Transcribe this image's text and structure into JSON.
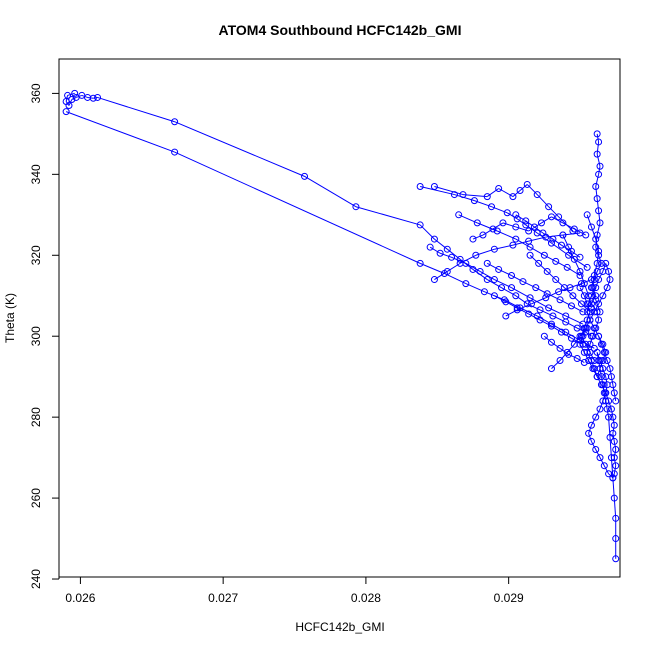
{
  "chart_data": {
    "type": "line",
    "title": "ATOM4 Southbound HCFC142b_GMI",
    "xlabel": "HCFC142b_GMI",
    "ylabel": "Theta (K)",
    "xlim": [
      0.02585,
      0.02978
    ],
    "ylim": [
      240.5,
      368.5
    ],
    "x_ticks": [
      0.026,
      0.027,
      0.028,
      0.029
    ],
    "x_tick_labels": [
      "0.026",
      "0.027",
      "0.028",
      "0.029"
    ],
    "y_ticks": [
      240,
      260,
      280,
      300,
      320,
      340,
      360
    ],
    "y_tick_labels": [
      "240",
      "260",
      "280",
      "300",
      "320",
      "340",
      "360"
    ],
    "grid": false,
    "legend": "none",
    "series_color": "#0000ff",
    "marker": "open-circle",
    "series": [
      {
        "x": [
          0.02962,
          0.02963,
          0.02962,
          0.02964,
          0.02963,
          0.02961,
          0.02962,
          0.02963,
          0.02964,
          0.02962,
          0.02961,
          0.02963,
          0.02965,
          0.02962,
          0.0296,
          0.02959,
          0.02961,
          0.02958,
          0.02962,
          0.02963,
          0.02961,
          0.02959,
          0.02957,
          0.02955,
          0.02958,
          0.0296,
          0.02962,
          0.02964,
          0.02966,
          0.02968,
          0.02966,
          0.02963,
          0.0296,
          0.02957,
          0.02955,
          0.02956,
          0.02958,
          0.02961,
          0.02963,
          0.02966,
          0.02968,
          0.0297,
          0.02971,
          0.02969,
          0.02966,
          0.02963,
          0.0296,
          0.02957,
          0.02954,
          0.02952,
          0.0295,
          0.02953,
          0.02956,
          0.02959,
          0.02962,
          0.02965,
          0.02968,
          0.0297,
          0.02972,
          0.02973,
          0.02974,
          0.02973,
          0.02974,
          0.02975,
          0.02974,
          0.02975,
          0.02974,
          0.02973,
          0.0297,
          0.02967,
          0.02964,
          0.02961,
          0.02958,
          0.02956,
          0.02958,
          0.02961,
          0.02964,
          0.02966,
          0.02968,
          0.02969,
          0.02968,
          0.02966,
          0.02964,
          0.02962,
          0.02963,
          0.02964,
          0.02965,
          0.02966,
          0.02967,
          0.02968,
          0.02969,
          0.0297,
          0.02971,
          0.02972,
          0.02973,
          0.02974,
          0.02975,
          0.02975,
          0.02975
        ],
        "y": [
          350.0,
          348.0,
          345.0,
          342.0,
          340.0,
          337.0,
          334.0,
          331.0,
          328.0,
          325.0,
          322.0,
          320.0,
          318.0,
          316.0,
          314.0,
          312.0,
          310.0,
          308.0,
          306.0,
          304.0,
          302.0,
          300.0,
          298.0,
          296.0,
          294.0,
          292.0,
          290.0,
          292.0,
          294.0,
          296.0,
          298.0,
          300.0,
          302.0,
          304.0,
          306.0,
          308.0,
          310.0,
          312.0,
          314.0,
          316.0,
          318.0,
          316.0,
          314.0,
          312.0,
          310.0,
          308.0,
          306.0,
          304.0,
          302.0,
          300.0,
          298.0,
          296.0,
          294.0,
          292.0,
          290.0,
          288.0,
          286.0,
          284.0,
          282.0,
          280.0,
          278.0,
          276.0,
          274.0,
          272.0,
          270.0,
          268.0,
          266.0,
          265.0,
          266.0,
          268.0,
          270.0,
          272.0,
          274.0,
          276.0,
          278.0,
          280.0,
          282.0,
          284.0,
          286.0,
          288.0,
          290.0,
          292.0,
          294.0,
          296.0,
          294.0,
          292.0,
          290.0,
          288.0,
          286.0,
          284.0,
          282.0,
          280.0,
          275.0,
          270.0,
          265.0,
          260.0,
          255.0,
          250.0,
          245.0
        ]
      },
      {
        "x": [
          0.02596,
          0.02591,
          0.0259,
          0.02592,
          0.02594,
          0.02597,
          0.02601,
          0.02605,
          0.02609,
          0.02612,
          0.02666,
          0.02757,
          0.02793,
          0.02838,
          0.02848,
          0.02857,
          0.02866,
          0.02875,
          0.02885,
          0.02895,
          0.02905,
          0.02913,
          0.02922,
          0.02931,
          0.0294,
          0.02948,
          0.02954,
          0.02958
        ],
        "y": [
          360.0,
          359.5,
          358.0,
          357.0,
          358.5,
          359.0,
          359.5,
          359.0,
          358.8,
          359.0,
          353.0,
          339.5,
          332.0,
          327.5,
          324.0,
          321.5,
          319.0,
          316.5,
          314.0,
          312.0,
          310.0,
          308.0,
          306.5,
          305.0,
          303.5,
          302.0,
          301.0,
          300.0
        ]
      },
      {
        "x": [
          0.0259,
          0.02666,
          0.02838,
          0.02855,
          0.0287,
          0.02883,
          0.02897,
          0.02908,
          0.0292,
          0.0293,
          0.0294,
          0.0295,
          0.0296
        ],
        "y": [
          355.5,
          345.5,
          318.0,
          315.5,
          313.0,
          311.0,
          309.0,
          307.0,
          305.0,
          303.0,
          301.0,
          299.0,
          297.0
        ]
      },
      {
        "x": [
          0.02838,
          0.02862,
          0.02876,
          0.02888,
          0.02899,
          0.02906,
          0.02912,
          0.0292,
          0.0293,
          0.02942,
          0.02955
        ],
        "y": [
          337.0,
          335.0,
          333.5,
          332.0,
          330.5,
          329.0,
          327.5,
          325.5,
          323.0,
          320.0,
          317.0
        ]
      },
      {
        "x": [
          0.02848,
          0.02868,
          0.02885,
          0.02893,
          0.02903,
          0.02908,
          0.02913,
          0.0292,
          0.02928,
          0.02935,
          0.02945
        ],
        "y": [
          337.0,
          335.0,
          334.5,
          336.5,
          334.5,
          336.0,
          337.5,
          335.0,
          332.0,
          329.5,
          326.0
        ]
      },
      {
        "x": [
          0.02865,
          0.02878,
          0.02892,
          0.02905,
          0.02915,
          0.02925,
          0.02933,
          0.02941,
          0.0295
        ],
        "y": [
          330.0,
          328.0,
          326.0,
          324.0,
          322.0,
          320.0,
          318.5,
          317.0,
          315.0
        ]
      },
      {
        "x": [
          0.02845,
          0.02852,
          0.0286,
          0.0287,
          0.0288,
          0.0289,
          0.02902,
          0.02915,
          0.02928,
          0.0294,
          0.02952
        ],
        "y": [
          322.0,
          320.5,
          319.5,
          318.0,
          316.0,
          314.0,
          312.0,
          309.5,
          307.0,
          305.0,
          303.0
        ]
      },
      {
        "x": [
          0.02848,
          0.02857,
          0.02866,
          0.02877,
          0.0289,
          0.02903,
          0.02914,
          0.02926,
          0.02938,
          0.0295
        ],
        "y": [
          314.0,
          316.0,
          318.0,
          320.0,
          321.5,
          322.5,
          323.5,
          324.5,
          325.0,
          325.5
        ]
      },
      {
        "x": [
          0.02875,
          0.02882,
          0.02889,
          0.02896,
          0.02905,
          0.02914,
          0.02923,
          0.0293,
          0.02938,
          0.02946,
          0.02954
        ],
        "y": [
          324.0,
          325.0,
          326.5,
          328.0,
          327.0,
          326.0,
          328.0,
          329.5,
          328.0,
          326.5,
          325.0
        ]
      },
      {
        "x": [
          0.0289,
          0.02898,
          0.02906,
          0.02914,
          0.02922,
          0.0293,
          0.02937,
          0.02944,
          0.02952
        ],
        "y": [
          310.0,
          308.5,
          307.0,
          305.5,
          304.0,
          302.5,
          301.0,
          299.5,
          298.0
        ]
      },
      {
        "x": [
          0.02898,
          0.02906,
          0.02916,
          0.02926,
          0.02935,
          0.02943,
          0.02951,
          0.02958
        ],
        "y": [
          305.0,
          306.5,
          308.0,
          309.5,
          311.0,
          312.0,
          313.0,
          314.0
        ]
      },
      {
        "x": [
          0.02915,
          0.02921,
          0.02927,
          0.02933,
          0.02939,
          0.02945,
          0.02951,
          0.02957
        ],
        "y": [
          320.0,
          318.0,
          316.0,
          314.0,
          312.0,
          310.0,
          308.0,
          306.0
        ]
      },
      {
        "x": [
          0.02925,
          0.0293,
          0.02936,
          0.02942,
          0.02948,
          0.02953
        ],
        "y": [
          300.0,
          298.5,
          297.0,
          295.5,
          294.5,
          293.5
        ]
      },
      {
        "x": [
          0.0293,
          0.02936,
          0.02941,
          0.02946,
          0.0295,
          0.02955
        ],
        "y": [
          292.0,
          294.0,
          296.0,
          298.0,
          300.0,
          302.0
        ]
      },
      {
        "x": [
          0.02905,
          0.02912,
          0.02918,
          0.02924,
          0.02931,
          0.02937,
          0.02944,
          0.0295
        ],
        "y": [
          330.0,
          328.5,
          327.0,
          325.5,
          324.0,
          322.5,
          321.0,
          319.5
        ]
      },
      {
        "x": [
          0.02885,
          0.02893,
          0.02902,
          0.0291,
          0.02919,
          0.02927,
          0.02936,
          0.02944,
          0.02952
        ],
        "y": [
          318.0,
          316.5,
          315.0,
          313.5,
          312.0,
          310.5,
          309.0,
          307.5,
          306.0
        ]
      },
      {
        "x": [
          0.02938,
          0.02942,
          0.02946,
          0.0295,
          0.02953,
          0.02956,
          0.02958
        ],
        "y": [
          325.0,
          322.0,
          319.0,
          316.0,
          313.0,
          310.0,
          307.0
        ]
      },
      {
        "x": [
          0.0295,
          0.02953,
          0.02955,
          0.02957,
          0.02955,
          0.02953,
          0.02951,
          0.02954,
          0.02957,
          0.0296
        ],
        "y": [
          312.0,
          310.0,
          308.0,
          306.0,
          304.0,
          302.0,
          300.0,
          298.0,
          296.0,
          294.0
        ]
      },
      {
        "x": [
          0.02955,
          0.02958,
          0.02961,
          0.02963,
          0.02962,
          0.0296,
          0.02958,
          0.02961,
          0.02964
        ],
        "y": [
          330.0,
          327.0,
          324.0,
          321.0,
          318.0,
          315.0,
          312.0,
          309.0,
          306.0
        ]
      },
      {
        "x": [
          0.02963,
          0.02965,
          0.02967,
          0.02969,
          0.02971,
          0.02972,
          0.02973,
          0.02974,
          0.02975
        ],
        "y": [
          300.0,
          298.0,
          296.0,
          294.0,
          292.0,
          290.0,
          288.0,
          286.0,
          284.0
        ]
      }
    ]
  }
}
